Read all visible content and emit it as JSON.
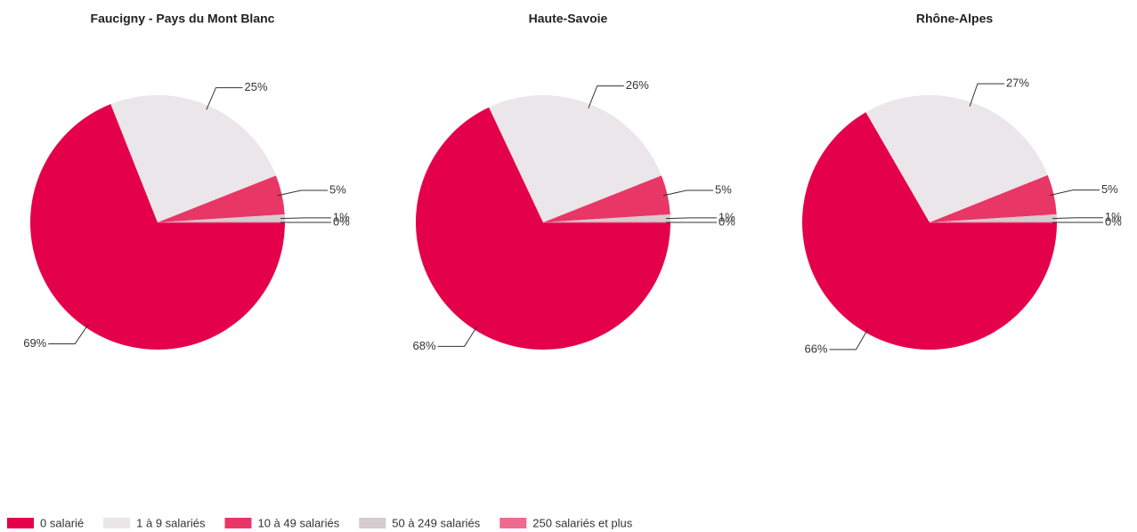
{
  "chart_data": [
    {
      "type": "pie",
      "title": "Faucigny - Pays du Mont Blanc",
      "categories": [
        "0 salarié",
        "1 à 9 salariés",
        "10 à 49 salariés",
        "50 à 249 salariés",
        "250 salariés et plus"
      ],
      "values": [
        69,
        25,
        5,
        1,
        0
      ],
      "value_labels": [
        "69%",
        "25%",
        "5%",
        "1%",
        "0%"
      ],
      "colors": [
        "#e5004b",
        "#ebe6e9",
        "#e83667",
        "#d6cbcf",
        "#ee6a8f"
      ]
    },
    {
      "type": "pie",
      "title": "Haute-Savoie",
      "categories": [
        "0 salarié",
        "1 à 9 salariés",
        "10 à 49 salariés",
        "50 à 249 salariés",
        "250 salariés et plus"
      ],
      "values": [
        68,
        26,
        5,
        1,
        0
      ],
      "value_labels": [
        "68%",
        "26%",
        "5%",
        "1%",
        "0%"
      ],
      "colors": [
        "#e5004b",
        "#ebe6e9",
        "#e83667",
        "#d6cbcf",
        "#ee6a8f"
      ]
    },
    {
      "type": "pie",
      "title": "Rhône-Alpes",
      "categories": [
        "0 salarié",
        "1 à 9 salariés",
        "10 à 49 salariés",
        "50 à 249 salariés",
        "250 salariés et plus"
      ],
      "values": [
        66,
        27,
        5,
        1,
        0
      ],
      "value_labels": [
        "66%",
        "27%",
        "5%",
        "1%",
        "0%"
      ],
      "colors": [
        "#e5004b",
        "#ebe6e9",
        "#e83667",
        "#d6cbcf",
        "#ee6a8f"
      ]
    }
  ]
}
